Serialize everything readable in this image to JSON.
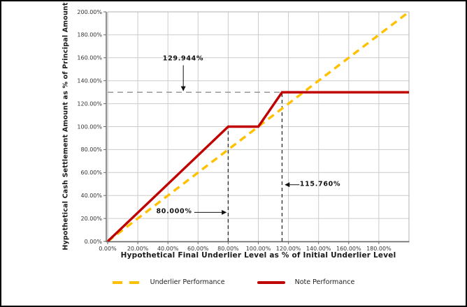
{
  "chart_data": {
    "type": "line",
    "title": "",
    "xlabel": "Hypothetical Final Underlier Level as % of Initial Underlier Level",
    "ylabel": "Hypothetical Cash Settlement Amount as % of Principal Amount",
    "xlim": [
      0,
      200
    ],
    "ylim": [
      0,
      200
    ],
    "grid": true,
    "grid_color": "#CCCCCC",
    "plot_border_color": "#B0B0B0",
    "axis_color": "#666666",
    "x_tick_values": [
      0,
      20,
      40,
      60,
      80,
      100,
      120,
      140,
      160,
      180
    ],
    "x_tick_labels": [
      "0.00%",
      "20.00%",
      "40.00%",
      "60.00%",
      "80.00%",
      "100.00%",
      "120.00%",
      "140.00%",
      "160.00%",
      "180.00%"
    ],
    "y_tick_values": [
      0,
      20,
      40,
      60,
      80,
      100,
      120,
      140,
      160,
      180,
      200
    ],
    "y_tick_labels": [
      "0.00%",
      "20.00%",
      "40.00%",
      "60.00%",
      "80.00%",
      "100.00%",
      "120.00%",
      "140.00%",
      "160.00%",
      "180.00%",
      "200.00%"
    ],
    "series": [
      {
        "name": "Underlier Performance",
        "color": "#FFC000",
        "style": "dashed",
        "points": [
          [
            0,
            0
          ],
          [
            200,
            200
          ]
        ]
      },
      {
        "name": "Note Performance",
        "color": "#C00000",
        "style": "solid",
        "points": [
          [
            0,
            0
          ],
          [
            80,
            100
          ],
          [
            100,
            100
          ],
          [
            115.76,
            129.944
          ],
          [
            200,
            129.944
          ]
        ]
      }
    ],
    "reference_lines": [
      {
        "orientation": "horizontal",
        "value": 129.944,
        "span": [
          0,
          115.76
        ],
        "color": "#999999",
        "style": "dashed"
      },
      {
        "orientation": "vertical",
        "value": 80,
        "span": [
          0,
          100
        ],
        "color": "#2A2A2A",
        "style": "dashed"
      },
      {
        "orientation": "vertical",
        "value": 115.76,
        "span": [
          0,
          129.944
        ],
        "color": "#2A2A2A",
        "style": "dashed"
      }
    ],
    "annotations": [
      {
        "label": "129.944%",
        "arrow": {
          "from": [
            50.2,
            153.5
          ],
          "to": [
            50.2,
            131.5
          ]
        }
      },
      {
        "label": "80.000%",
        "arrow": {
          "from": [
            57.5,
            25.3
          ],
          "to": [
            78.5,
            25.3
          ]
        }
      },
      {
        "label": "115.760%",
        "arrow": {
          "from": [
            127.3,
            49.4
          ],
          "to": [
            118,
            49.4
          ]
        }
      }
    ],
    "legend": {
      "position": "bottom",
      "entries": [
        "Underlier Performance",
        "Note Performance"
      ]
    }
  }
}
